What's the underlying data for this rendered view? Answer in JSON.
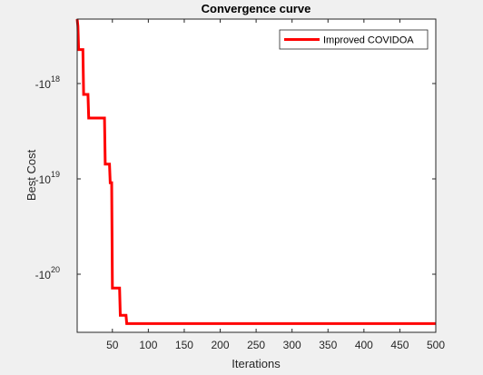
{
  "chart_data": {
    "type": "line",
    "title": "Convergence curve",
    "xlabel": "Iterations",
    "ylabel": "Best Cost",
    "xlim": [
      1,
      500
    ],
    "y_scale": "symlog-negative",
    "y_ticks": [
      {
        "base": "-10",
        "exp": "18",
        "value": -1e+18
      },
      {
        "base": "-10",
        "exp": "19",
        "value": -1e+19
      },
      {
        "base": "-10",
        "exp": "20",
        "value": -1e+20
      }
    ],
    "x_ticks": [
      50,
      100,
      150,
      200,
      250,
      300,
      350,
      400,
      450,
      500
    ],
    "legend": {
      "position": "top-right"
    },
    "grid": false,
    "series": [
      {
        "name": "Improved COVIDOA",
        "color": "#ff0000",
        "points": [
          [
            1,
            -1.2e+17
          ],
          [
            2,
            -2.5e+17
          ],
          [
            3,
            -4.4e+17
          ],
          [
            9,
            -4.4e+17
          ],
          [
            10,
            -1.3e+18
          ],
          [
            16,
            -1.3e+18
          ],
          [
            17,
            -2.3e+18
          ],
          [
            39,
            -2.3e+18
          ],
          [
            40,
            -7e+18
          ],
          [
            46,
            -7e+18
          ],
          [
            47,
            -1.1e+19
          ],
          [
            49,
            -1.1e+19
          ],
          [
            50,
            -1.4e+20
          ],
          [
            60,
            -1.4e+20
          ],
          [
            61,
            -2.7e+20
          ],
          [
            69,
            -2.7e+20
          ],
          [
            70,
            -3.3e+20
          ],
          [
            500,
            -3.3e+20
          ]
        ]
      }
    ]
  }
}
